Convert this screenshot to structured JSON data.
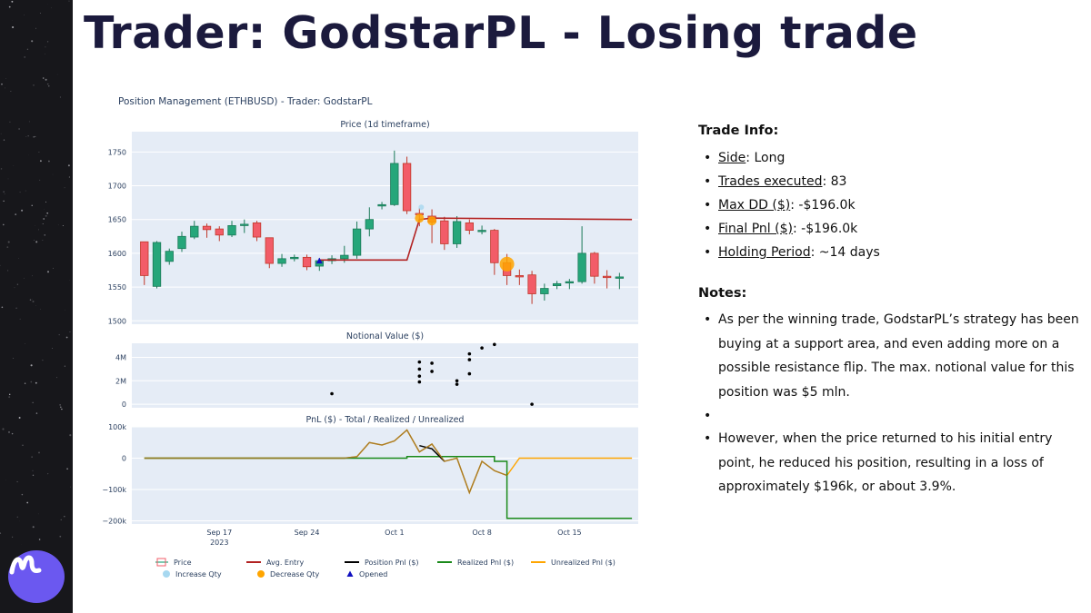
{
  "slide": {
    "title": "Trader: GodstarPL - Losing trade"
  },
  "colors": {
    "increasing": "#26a67a",
    "decreasing": "#f25c68",
    "avg_entry": "#b22222",
    "plot_bg": "#e5ecf6",
    "brand": "#6b58f0",
    "realized": "#1a8a1a",
    "unrealized": "#ffa500",
    "position": "#000000"
  },
  "trade_info": {
    "heading": "Trade Info:",
    "items": [
      {
        "label": "Side",
        "value": ": Long"
      },
      {
        "label": "Trades executed",
        "value": ": 83"
      },
      {
        "label": "Max DD ($)",
        "value": ": -$196.0k"
      },
      {
        "label": "Final Pnl ($)",
        "value": ": -$196.0k"
      },
      {
        "label": "Holding Period",
        "value": ": ~14 days"
      }
    ]
  },
  "notes": {
    "heading": "Notes:",
    "items": [
      "As per the winning trade, GodstarPL’s strategy has been buying at a support area, and even adding more on a possible resistance flip. The max. notional value for this position was $5 mln.",
      "However, when the price returned to his initial entry point, he reduced his position, resulting in a loss of approximately $196k, or about 3.9%."
    ]
  },
  "chart_data": [
    {
      "type": "candlestick",
      "figure_title": "Position Management (ETHBUSD) - Trader: GodstarPL",
      "title": "Price (1d timeframe)",
      "ylim": [
        1495,
        1780
      ],
      "yticks": [
        1500,
        1550,
        1600,
        1650,
        1700,
        1750
      ],
      "x_start": "2023-09-11",
      "x_end": "2023-10-20",
      "candles": [
        [
          "2023-09-11",
          1617,
          1567,
          1553,
          1617
        ],
        [
          "2023-09-12",
          1551,
          1616,
          1548,
          1618
        ],
        [
          "2023-09-13",
          1588,
          1603,
          1583,
          1607
        ],
        [
          "2023-09-14",
          1607,
          1625,
          1602,
          1632
        ],
        [
          "2023-09-15",
          1624,
          1640,
          1621,
          1648
        ],
        [
          "2023-09-16",
          1640,
          1635,
          1623,
          1644
        ],
        [
          "2023-09-17",
          1636,
          1627,
          1618,
          1640
        ],
        [
          "2023-09-18",
          1627,
          1641,
          1624,
          1648
        ],
        [
          "2023-09-19",
          1641,
          1643,
          1630,
          1650
        ],
        [
          "2023-09-20",
          1645,
          1624,
          1618,
          1648
        ],
        [
          "2023-09-21",
          1623,
          1585,
          1578,
          1623
        ],
        [
          "2023-09-22",
          1585,
          1592,
          1580,
          1599
        ],
        [
          "2023-09-23",
          1592,
          1594,
          1588,
          1598
        ],
        [
          "2023-09-24",
          1594,
          1580,
          1575,
          1598
        ],
        [
          "2023-09-25",
          1581,
          1589,
          1574,
          1593
        ],
        [
          "2023-09-26",
          1589,
          1592,
          1584,
          1597
        ],
        [
          "2023-09-27",
          1592,
          1597,
          1586,
          1611
        ],
        [
          "2023-09-28",
          1597,
          1636,
          1592,
          1647
        ],
        [
          "2023-09-29",
          1636,
          1650,
          1625,
          1668
        ],
        [
          "2023-09-30",
          1670,
          1672,
          1665,
          1676
        ],
        [
          "2023-10-01",
          1672,
          1733,
          1670,
          1752
        ],
        [
          "2023-10-02",
          1733,
          1663,
          1658,
          1743
        ],
        [
          "2023-10-03",
          1659,
          1658,
          1640,
          1667
        ],
        [
          "2023-10-04",
          1655,
          1646,
          1615,
          1665
        ],
        [
          "2023-10-05",
          1648,
          1614,
          1605,
          1654
        ],
        [
          "2023-10-06",
          1614,
          1647,
          1608,
          1655
        ],
        [
          "2023-10-07",
          1645,
          1634,
          1628,
          1650
        ],
        [
          "2023-10-08",
          1634,
          1634,
          1628,
          1641
        ],
        [
          "2023-10-09",
          1634,
          1586,
          1568,
          1636
        ],
        [
          "2023-10-10",
          1586,
          1567,
          1553,
          1599
        ],
        [
          "2023-10-11",
          1567,
          1566,
          1553,
          1576
        ],
        [
          "2023-10-12",
          1568,
          1540,
          1525,
          1574
        ],
        [
          "2023-10-13",
          1540,
          1548,
          1530,
          1555
        ],
        [
          "2023-10-14",
          1552,
          1555,
          1547,
          1559
        ],
        [
          "2023-10-15",
          1556,
          1558,
          1547,
          1562
        ],
        [
          "2023-10-16",
          1558,
          1600,
          1555,
          1640
        ],
        [
          "2023-10-17",
          1600,
          1566,
          1555,
          1602
        ],
        [
          "2023-10-18",
          1566,
          1564,
          1548,
          1575
        ],
        [
          "2023-10-19",
          1564,
          1565,
          1547,
          1571
        ]
      ],
      "avg_entry": [
        [
          "2023-09-25",
          1590
        ],
        [
          "2023-10-02",
          1590
        ],
        [
          "2023-10-03",
          1650
        ],
        [
          "2023-10-04",
          1652
        ],
        [
          "2023-10-20",
          1650
        ]
      ],
      "opened": [
        [
          "2023-09-25",
          1589
        ]
      ],
      "decrease_qty": [
        [
          "2023-10-03",
          1652
        ],
        [
          "2023-10-04",
          1648
        ],
        [
          "2023-10-10",
          1584
        ]
      ],
      "increase_qty": [
        [
          "2023-10-03",
          1660
        ]
      ]
    },
    {
      "type": "scatter",
      "title": "Notional Value ($)",
      "ylim": [
        -300000,
        5200000
      ],
      "yticks": [
        0,
        2000000,
        4000000
      ],
      "ytick_labels": [
        "0",
        "2M",
        "4M"
      ],
      "points": [
        [
          "2023-09-26",
          900000
        ],
        [
          "2023-10-03",
          3600000
        ],
        [
          "2023-10-03",
          3000000
        ],
        [
          "2023-10-03",
          2400000
        ],
        [
          "2023-10-03",
          1900000
        ],
        [
          "2023-10-04",
          3500000
        ],
        [
          "2023-10-04",
          2800000
        ],
        [
          "2023-10-06",
          1700000
        ],
        [
          "2023-10-06",
          2000000
        ],
        [
          "2023-10-07",
          2600000
        ],
        [
          "2023-10-07",
          3800000
        ],
        [
          "2023-10-07",
          4300000
        ],
        [
          "2023-10-08",
          4800000
        ],
        [
          "2023-10-09",
          5100000
        ],
        [
          "2023-10-12",
          0
        ]
      ]
    },
    {
      "type": "line",
      "title": "PnL ($) - Total / Realized / Unrealized",
      "ylim": [
        -210000,
        100000
      ],
      "yticks": [
        -200000,
        -100000,
        0,
        100000
      ],
      "ytick_labels": [
        "−200k",
        "−100k",
        "0",
        "100k"
      ],
      "xticks": [
        "2023-09-17",
        "2023-09-24",
        "2023-10-01",
        "2023-10-08",
        "2023-10-15"
      ],
      "xtick_labels": [
        "Sep 17",
        "Sep 24",
        "Oct 1",
        "Oct 8",
        "Oct 15"
      ],
      "xtick_year": "2023",
      "series": [
        {
          "name": "Position Pnl ($)",
          "key": "position",
          "points": [
            [
              "2023-10-03",
              40000
            ],
            [
              "2023-10-04",
              30000
            ],
            [
              "2023-10-05",
              -10000
            ]
          ]
        },
        {
          "name": "Realized Pnl ($)",
          "key": "realized",
          "points": [
            [
              "2023-09-11",
              0
            ],
            [
              "2023-10-02",
              0
            ],
            [
              "2023-10-02",
              5000
            ],
            [
              "2023-10-09",
              5000
            ],
            [
              "2023-10-09",
              -10000
            ],
            [
              "2023-10-10",
              -10000
            ],
            [
              "2023-10-10",
              -192000
            ],
            [
              "2023-10-20",
              -192000
            ]
          ]
        },
        {
          "name": "Unrealized Pnl ($)",
          "key": "unrealized",
          "points": [
            [
              "2023-09-11",
              0
            ],
            [
              "2023-09-27",
              0
            ],
            [
              "2023-09-28",
              5000
            ],
            [
              "2023-09-29",
              50000
            ],
            [
              "2023-09-30",
              42000
            ],
            [
              "2023-10-01",
              55000
            ],
            [
              "2023-10-02",
              90000
            ],
            [
              "2023-10-03",
              20000
            ],
            [
              "2023-10-04",
              45000
            ],
            [
              "2023-10-05",
              -10000
            ],
            [
              "2023-10-06",
              0
            ],
            [
              "2023-10-07",
              -110000
            ],
            [
              "2023-10-08",
              -10000
            ],
            [
              "2023-10-09",
              -40000
            ],
            [
              "2023-10-10",
              -55000
            ],
            [
              "2023-10-11",
              0
            ],
            [
              "2023-10-20",
              0
            ]
          ]
        }
      ]
    }
  ],
  "legend": {
    "items": [
      {
        "label": "Price",
        "key": "price"
      },
      {
        "label": "Avg. Entry",
        "key": "avg_entry"
      },
      {
        "label": "Position Pnl ($)",
        "key": "position"
      },
      {
        "label": "Realized Pnl ($)",
        "key": "realized"
      },
      {
        "label": "Unrealized Pnl ($)",
        "key": "unrealized"
      },
      {
        "label": "Increase Qty",
        "key": "increase"
      },
      {
        "label": "Decrease Qty",
        "key": "decrease"
      },
      {
        "label": "Opened",
        "key": "opened"
      }
    ]
  }
}
